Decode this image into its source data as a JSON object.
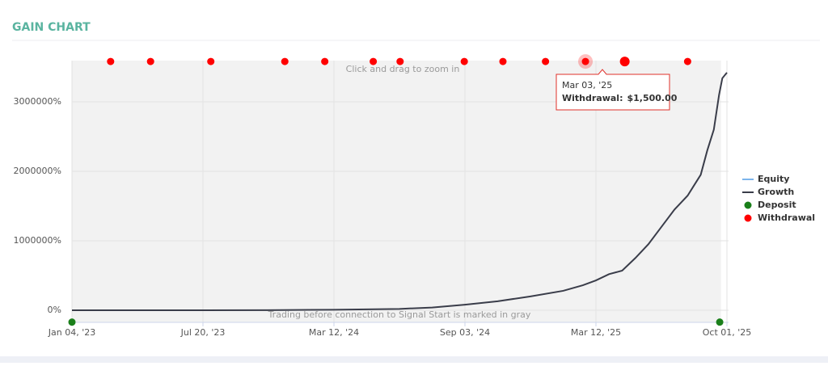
{
  "header": {
    "title": "GAIN CHART"
  },
  "chart_data": {
    "type": "line",
    "annotations": {
      "zoom_hint": "Click and drag to zoom in",
      "gray_note": "Trading before connection to Signal Start is marked in gray"
    },
    "xlim": [
      0,
      100
    ],
    "xticks": [
      {
        "value": 0,
        "label": "Jan 04, '23"
      },
      {
        "value": 20,
        "label": "Jul 20, '23"
      },
      {
        "value": 40,
        "label": "Mar 12, '24"
      },
      {
        "value": 60,
        "label": "Sep 03, '24"
      },
      {
        "value": 80,
        "label": "Mar 12, '25"
      },
      {
        "value": 100,
        "label": "Oct 01, '25"
      }
    ],
    "ylim": [
      -174000,
      3593000
    ],
    "yticks": [
      {
        "value": 0,
        "label": "0%"
      },
      {
        "value": 1000000,
        "label": "1000000%"
      },
      {
        "value": 2000000,
        "label": "2000000%"
      },
      {
        "value": 3000000,
        "label": "3000000%"
      }
    ],
    "grid": true,
    "plot_band": {
      "from": 0,
      "to": 99.1,
      "color": "#f2f2f2"
    },
    "series": [
      {
        "name": "Equity",
        "color": "#7cb5ec",
        "kind": "line"
      },
      {
        "name": "Growth",
        "color": "#3a3d4a",
        "kind": "line",
        "x": [
          0,
          10,
          20,
          30,
          40,
          50,
          55,
          60,
          65,
          70,
          75,
          78,
          80,
          82,
          84,
          86,
          88,
          90,
          92,
          94,
          95,
          96,
          97,
          98,
          98.8,
          99.3,
          100
        ],
        "values": [
          0,
          0,
          0,
          2000,
          8000,
          20000,
          40000,
          80000,
          130000,
          200000,
          280000,
          360000,
          430000,
          520000,
          570000,
          750000,
          950000,
          1200000,
          1450000,
          1650000,
          1800000,
          1950000,
          2300000,
          2600000,
          3100000,
          3340000,
          3420000
        ]
      },
      {
        "name": "Deposit",
        "color": "#1a7f1a",
        "kind": "marker",
        "x": [
          0,
          98.9
        ],
        "values": [
          -170000,
          -170000
        ]
      },
      {
        "name": "Withdrawal",
        "color": "#ff0000",
        "kind": "marker",
        "x": [
          5.9,
          12.0,
          21.2,
          32.5,
          38.6,
          46.0,
          50.1,
          59.9,
          65.8,
          72.3,
          78.4,
          84.4,
          94.0
        ],
        "values": [
          3580000,
          3580000,
          3580000,
          3580000,
          3580000,
          3580000,
          3580000,
          3580000,
          3580000,
          3580000,
          3580000,
          3580000,
          3580000
        ]
      }
    ],
    "tooltip": {
      "title": "Mar 03, '25",
      "series": "Withdrawal:",
      "value_label": "$1,500.00"
    }
  }
}
